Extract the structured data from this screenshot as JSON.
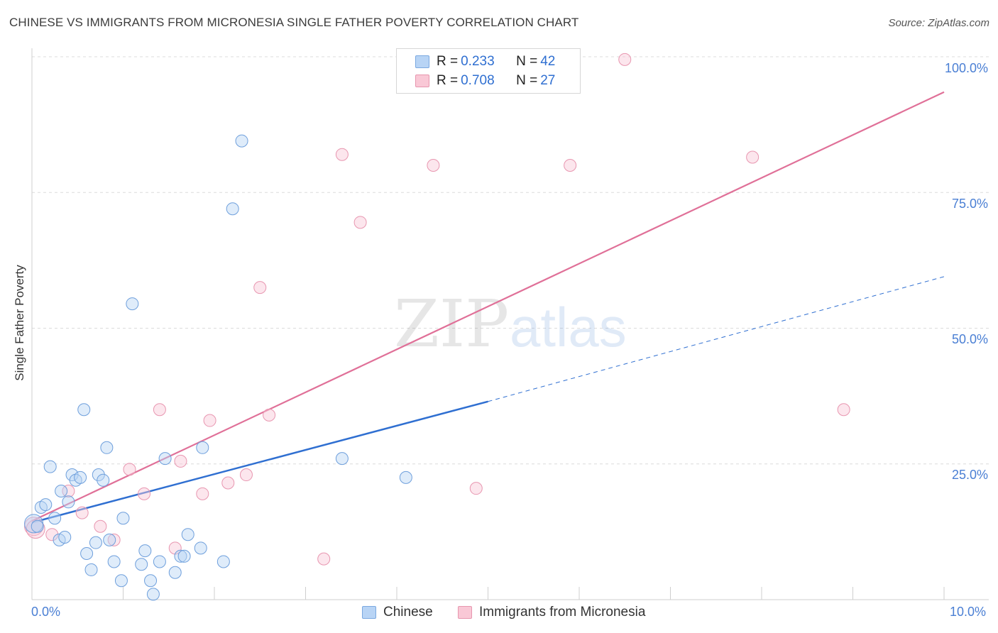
{
  "title": "CHINESE VS IMMIGRANTS FROM MICRONESIA SINGLE FATHER POVERTY CORRELATION CHART",
  "source": "Source: ZipAtlas.com",
  "watermark": {
    "zip": "ZIP",
    "atlas": "atlas"
  },
  "colors": {
    "blue": "#2f6fd1",
    "blue_fill": "#b8d4f5",
    "pink": "#e07098",
    "pink_fill": "#f9c8d6",
    "axis_text": "#4a7fd4"
  },
  "legend": {
    "rows": [
      {
        "r_label": "R = ",
        "r_value": "0.233",
        "n_label": "N = ",
        "n_value": "42"
      },
      {
        "r_label": "R = ",
        "r_value": "0.708",
        "n_label": "N = ",
        "n_value": "27"
      }
    ]
  },
  "chart_data": {
    "type": "scatter",
    "title": "CHINESE VS IMMIGRANTS FROM MICRONESIA SINGLE FATHER POVERTY CORRELATION CHART",
    "xlabel": "",
    "ylabel": "Single Father Poverty",
    "xlim": [
      0,
      10
    ],
    "ylim": [
      0,
      100
    ],
    "x_tick_labels": [
      "0.0%",
      "10.0%"
    ],
    "y_tick_labels": [
      "100.0%",
      "75.0%",
      "50.0%",
      "25.0%"
    ],
    "y_tick_values": [
      100,
      75,
      50,
      25
    ],
    "grid": true,
    "legend_position": "bottom",
    "series": [
      {
        "name": "Chinese",
        "R": 0.233,
        "N": 42,
        "trend": {
          "x0": 0,
          "y0": 14.2,
          "x_solid_end": 5.0,
          "y_solid_end": 36.5,
          "x1": 10.0,
          "y1": 59.5
        },
        "points": [
          [
            0.02,
            14.0
          ],
          [
            0.06,
            13.5
          ],
          [
            0.1,
            17.0
          ],
          [
            0.15,
            17.5
          ],
          [
            0.2,
            24.5
          ],
          [
            0.25,
            15.0
          ],
          [
            0.3,
            11.0
          ],
          [
            0.32,
            20.0
          ],
          [
            0.36,
            11.5
          ],
          [
            0.4,
            18.0
          ],
          [
            0.44,
            23.0
          ],
          [
            0.48,
            22.0
          ],
          [
            0.53,
            22.5
          ],
          [
            0.57,
            35.0
          ],
          [
            0.6,
            8.5
          ],
          [
            0.65,
            5.5
          ],
          [
            0.7,
            10.5
          ],
          [
            0.73,
            23.0
          ],
          [
            0.78,
            22.0
          ],
          [
            0.82,
            28.0
          ],
          [
            0.85,
            11.0
          ],
          [
            0.9,
            7.0
          ],
          [
            0.98,
            3.5
          ],
          [
            1.0,
            15.0
          ],
          [
            1.1,
            54.5
          ],
          [
            1.2,
            6.5
          ],
          [
            1.24,
            9.0
          ],
          [
            1.3,
            3.5
          ],
          [
            1.33,
            1.0
          ],
          [
            1.4,
            7.0
          ],
          [
            1.46,
            26.0
          ],
          [
            1.57,
            5.0
          ],
          [
            1.63,
            8.0
          ],
          [
            1.67,
            8.0
          ],
          [
            1.71,
            12.0
          ],
          [
            1.85,
            9.5
          ],
          [
            1.87,
            28.0
          ],
          [
            2.1,
            7.0
          ],
          [
            2.2,
            72.0
          ],
          [
            2.3,
            84.5
          ],
          [
            3.4,
            26.0
          ],
          [
            4.1,
            22.5
          ]
        ]
      },
      {
        "name": "Immigrants from Micronesia",
        "R": 0.708,
        "N": 27,
        "trend": {
          "x0": 0,
          "y0": 14.5,
          "x1": 10.0,
          "y1": 93.5
        },
        "points": [
          [
            0.02,
            13.5
          ],
          [
            0.04,
            13.0
          ],
          [
            0.22,
            12.0
          ],
          [
            0.4,
            20.0
          ],
          [
            0.55,
            16.0
          ],
          [
            0.75,
            13.5
          ],
          [
            0.9,
            11.0
          ],
          [
            1.07,
            24.0
          ],
          [
            1.23,
            19.5
          ],
          [
            1.4,
            35.0
          ],
          [
            1.57,
            9.5
          ],
          [
            1.63,
            25.5
          ],
          [
            1.87,
            19.5
          ],
          [
            1.95,
            33.0
          ],
          [
            2.15,
            21.5
          ],
          [
            2.35,
            23.0
          ],
          [
            2.5,
            57.5
          ],
          [
            2.6,
            34.0
          ],
          [
            3.2,
            7.5
          ],
          [
            3.4,
            82.0
          ],
          [
            3.6,
            69.5
          ],
          [
            4.4,
            80.0
          ],
          [
            4.87,
            20.5
          ],
          [
            5.9,
            80.0
          ],
          [
            6.5,
            99.5
          ],
          [
            7.9,
            81.5
          ],
          [
            8.9,
            35.0
          ]
        ]
      }
    ]
  }
}
